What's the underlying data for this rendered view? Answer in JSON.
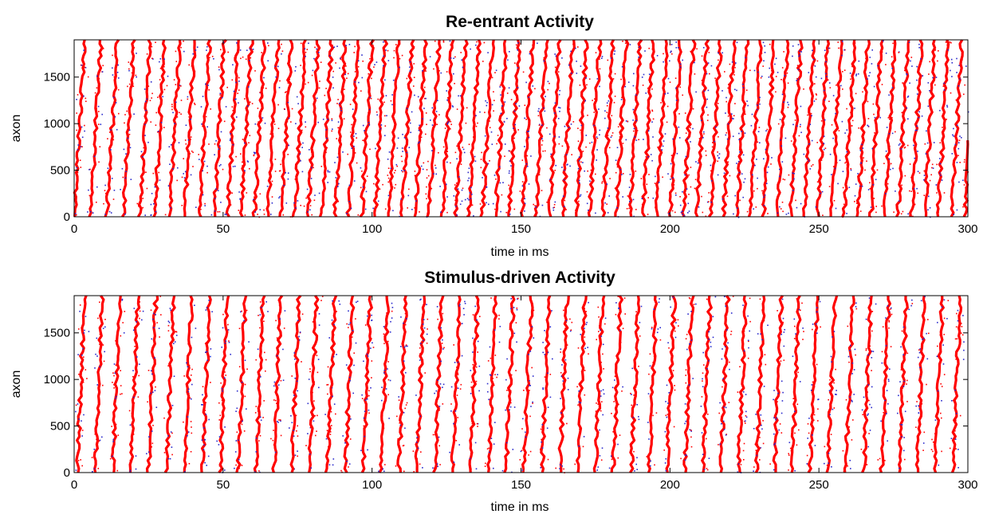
{
  "colors": {
    "spike": "#ff0000",
    "dots": "#2a2acc",
    "frame": "#000000",
    "background": "#ffffff"
  },
  "chart_data": [
    {
      "type": "scatter",
      "title": "Re-entrant Activity",
      "xlabel": "time in ms",
      "ylabel": "axon",
      "xlim": [
        0,
        300
      ],
      "ylim": [
        0,
        1900
      ],
      "xticks": [
        "0",
        "50",
        "100",
        "150",
        "200",
        "250",
        "300"
      ],
      "yticks": [
        "0",
        "500",
        "1000",
        "1500"
      ],
      "grid": false,
      "series": [
        {
          "waves": [
            0,
            5.5,
            11,
            16.5,
            22,
            27,
            32,
            37,
            42,
            47,
            51.5,
            56,
            60.5,
            65,
            69.5,
            74,
            78.5,
            83,
            87.5,
            92,
            96.5,
            101,
            105.5,
            110,
            114.5,
            119,
            123.5,
            128,
            132.5,
            137,
            141.5,
            146,
            150.5,
            155,
            159.5,
            164,
            168.5,
            173,
            177.5,
            182,
            186.5,
            191,
            195.5,
            200,
            204.5,
            209,
            213.5,
            218,
            222.5,
            227,
            231.5,
            236,
            240.5,
            245,
            249.5,
            254,
            258.5,
            263,
            267.5,
            272,
            276.5,
            281,
            285.5,
            290,
            294.5,
            299
          ],
          "wave_span_ms": 3.5
        }
      ]
    },
    {
      "type": "scatter",
      "title": "Stimulus-driven Activity",
      "xlabel": "time in ms",
      "ylabel": "axon",
      "xlim": [
        0,
        300
      ],
      "ylim": [
        0,
        1900
      ],
      "xticks": [
        "0",
        "50",
        "100",
        "150",
        "200",
        "250",
        "300"
      ],
      "yticks": [
        "0",
        "500",
        "1000",
        "1500"
      ],
      "grid": false,
      "series": [
        {
          "waves": [
            1,
            7,
            13,
            19,
            25,
            31,
            37,
            43,
            49,
            55,
            61,
            67,
            73,
            79,
            85,
            91,
            97,
            103,
            109,
            115,
            121,
            127,
            133,
            139,
            145,
            151,
            157,
            163,
            169,
            175,
            181,
            187,
            193,
            199,
            205,
            211,
            217,
            223,
            229,
            235,
            241,
            247,
            253,
            259,
            265,
            271,
            277,
            283,
            289,
            295
          ],
          "wave_span_ms": 2.5
        }
      ]
    }
  ]
}
